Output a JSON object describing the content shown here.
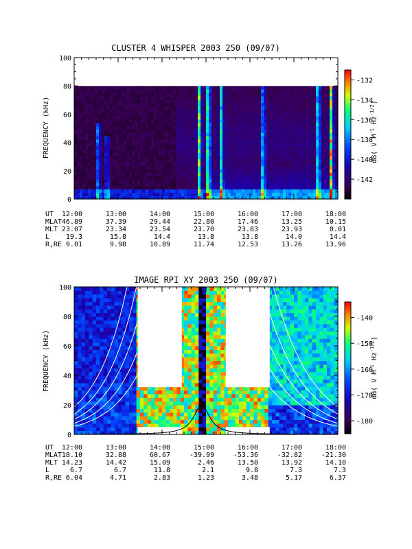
{
  "chart_data": [
    {
      "type": "heatmap",
      "title": "CLUSTER 4 WHISPER 2003 250 (09/07)",
      "ylabel": "FREQUENCY (kHz)",
      "ylim": [
        0,
        100
      ],
      "yticks": [
        "0",
        "20",
        "40",
        "60",
        "80",
        "100"
      ],
      "xlim_hours": [
        12,
        18
      ],
      "xticks": [
        "12:00",
        "13:00",
        "14:00",
        "15:00",
        "16:00",
        "17:00",
        "18:00"
      ],
      "data_freq_max_khz": 80,
      "colorbar": {
        "label": "dB( V M⁻¹ Hz⁻¹ᐟ²)",
        "label_text": "dB( V M",
        "label_sup1": "-1",
        "label_mid": " Hz",
        "label_sup2": "-1/2",
        "label_end": ")",
        "range": [
          -144,
          -131
        ],
        "ticks": [
          "-132",
          "-134",
          "-136",
          "-138",
          "-140",
          "-142"
        ],
        "tick_values": [
          -132,
          -134,
          -136,
          -138,
          -140,
          -142
        ]
      },
      "bursts": [
        {
          "hour": 12.55,
          "top_khz": 55,
          "level": 0.55
        },
        {
          "hour": 12.75,
          "top_khz": 45,
          "level": 0.45
        },
        {
          "hour": 14.85,
          "top_khz": 80,
          "level": 0.75
        },
        {
          "hour": 15.05,
          "top_khz": 80,
          "level": 0.8
        },
        {
          "hour": 15.35,
          "top_khz": 80,
          "level": 0.6
        },
        {
          "hour": 16.3,
          "top_khz": 80,
          "level": 0.55
        },
        {
          "hour": 17.55,
          "top_khz": 80,
          "level": 0.7
        },
        {
          "hour": 17.85,
          "top_khz": 80,
          "level": 0.85
        }
      ],
      "ephemeris": {
        "labels": [
          "UT",
          "MLAT",
          "MLT",
          "L",
          "R,RE"
        ],
        "rows": [
          [
            "12:00",
            "13:00",
            "14:00",
            "15:00",
            "16:00",
            "17:00",
            "18:00"
          ],
          [
            "46.89",
            "37.39",
            "29.44",
            "22.80",
            "17.46",
            "13.25",
            "10.15"
          ],
          [
            "23.07",
            "23.34",
            "23.54",
            "23.70",
            "23.83",
            "23.93",
            "0.01"
          ],
          [
            "19.3",
            "15.8",
            "14.4",
            "13.8",
            "13.8",
            "14.0",
            "14.4"
          ],
          [
            "9.01",
            "9.98",
            "10.89",
            "11.74",
            "12.53",
            "13.26",
            "13.96"
          ]
        ]
      }
    },
    {
      "type": "heatmap",
      "title": "IMAGE RPI XY 2003 250 (09/07)",
      "ylabel": "FREQUENCY (kHz)",
      "ylim": [
        0,
        100
      ],
      "yticks": [
        "0",
        "20",
        "40",
        "60",
        "80",
        "100"
      ],
      "xlim_hours": [
        12,
        18
      ],
      "xticks": [
        "12:00",
        "13:00",
        "14:00",
        "15:00",
        "16:00",
        "17:00",
        "18:00"
      ],
      "data_gaps_hours": [
        [
          13.45,
          14.45
        ],
        [
          15.45,
          16.45
        ]
      ],
      "gap_band_khz": [
        5,
        32
      ],
      "colorbar": {
        "label_text": "dB( V M",
        "label_sup1": "-1",
        "label_mid": " Hz",
        "label_sup2": "-1/2",
        "label_end": ")",
        "range": [
          -185,
          -134
        ],
        "ticks": [
          "-140",
          "-150",
          "-160",
          "-170",
          "-180"
        ],
        "tick_values": [
          -140,
          -150,
          -160,
          -170,
          -180
        ]
      },
      "plasma_peak": {
        "hour": 14.9,
        "peak_khz": 20
      },
      "ephemeris": {
        "labels": [
          "UT",
          "MLAT",
          "MLT",
          "L",
          "R,RE"
        ],
        "rows": [
          [
            "12:00",
            "13:00",
            "14:00",
            "15:00",
            "16:00",
            "17:00",
            "18:00"
          ],
          [
            "18.10",
            "32.88",
            "60.67",
            "-39.99",
            "-53.36",
            "-32.82",
            "-21.30"
          ],
          [
            "14.23",
            "14.42",
            "15.09",
            "2.46",
            "13.50",
            "13.92",
            "14.10"
          ],
          [
            "6.7",
            "6.7",
            "11.8",
            "2.1",
            "9.8",
            "7.3",
            "7.3"
          ],
          [
            "6.04",
            "4.71",
            "2.83",
            "1.23",
            "3.48",
            "5.17",
            "6.37"
          ]
        ]
      }
    }
  ]
}
